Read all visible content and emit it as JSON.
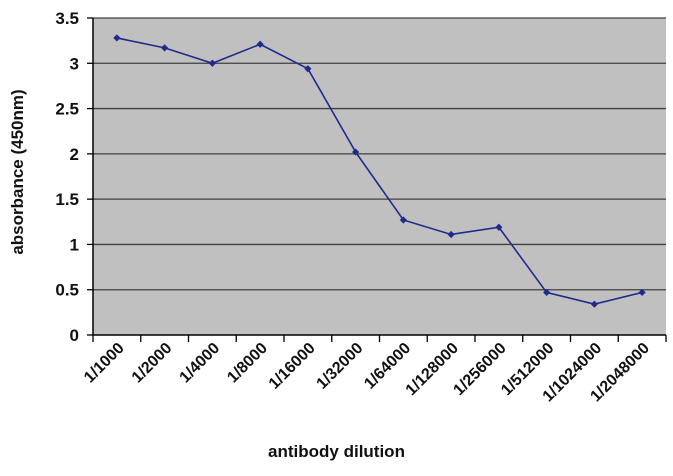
{
  "chart_data": {
    "type": "line",
    "title": "",
    "xlabel": "antibody dilution",
    "ylabel": "absorbance (450nm)",
    "categories": [
      "1/1000",
      "1/2000",
      "1/4000",
      "1/8000",
      "1/16000",
      "1/32000",
      "1/64000",
      "1/128000",
      "1/256000",
      "1/512000",
      "1/1024000",
      "1/2048000"
    ],
    "series": [
      {
        "values": [
          3.28,
          3.17,
          3.0,
          3.21,
          2.94,
          2.02,
          1.27,
          1.11,
          1.19,
          0.47,
          0.34,
          0.47
        ]
      }
    ],
    "ylim": [
      0,
      3.5
    ],
    "yticks": [
      "0",
      "0.5",
      "1",
      "1.5",
      "2",
      "2.5",
      "3",
      "3.5"
    ],
    "grid": true,
    "colors": {
      "plot_background": "#c0c0c0",
      "series": "#1f2a8c",
      "grid": "#404040"
    }
  }
}
